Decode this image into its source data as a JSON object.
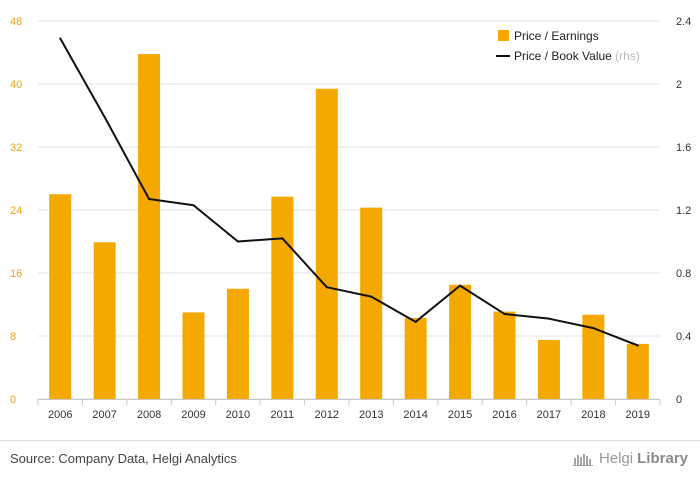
{
  "chart_data": {
    "type": "bar",
    "categories": [
      "2006",
      "2007",
      "2008",
      "2009",
      "2010",
      "2011",
      "2012",
      "2013",
      "2014",
      "2015",
      "2016",
      "2017",
      "2018",
      "2019"
    ],
    "series": [
      {
        "name": "Price / Earnings",
        "type": "bar",
        "axis": "left",
        "values": [
          26.0,
          19.9,
          43.8,
          11.0,
          14.0,
          25.7,
          39.4,
          24.3,
          10.3,
          14.5,
          11.1,
          7.5,
          10.7,
          7.0
        ],
        "color": "#f5a800"
      },
      {
        "name": "Price / Book Value",
        "name_suffix": "(rhs)",
        "type": "line",
        "axis": "right",
        "values": [
          2.29,
          1.79,
          1.27,
          1.23,
          1.0,
          1.02,
          0.71,
          0.65,
          0.49,
          0.72,
          0.54,
          0.51,
          0.45,
          0.34
        ],
        "color": "#111111"
      }
    ],
    "ylim_left": [
      0,
      48
    ],
    "yticks_left": [
      "0",
      "8",
      "16",
      "24",
      "32",
      "40",
      "48"
    ],
    "ylim_right": [
      0,
      2.4
    ],
    "yticks_right": [
      "0",
      "0.4",
      "0.8",
      "1.2",
      "1.6",
      "2",
      "2.4"
    ],
    "grid": true,
    "legend_position": "top-right",
    "title": "",
    "xlabel": "",
    "ylabel": ""
  },
  "footer": {
    "source": "Source: Company Data, Helgi Analytics",
    "brand_light": "Helgi",
    "brand_bold": "Library",
    "brand_icon": "helgilibrary-logo-icon"
  },
  "colors": {
    "accent": "#f5a800",
    "line": "#111111",
    "grid": "#e2e2e2"
  }
}
